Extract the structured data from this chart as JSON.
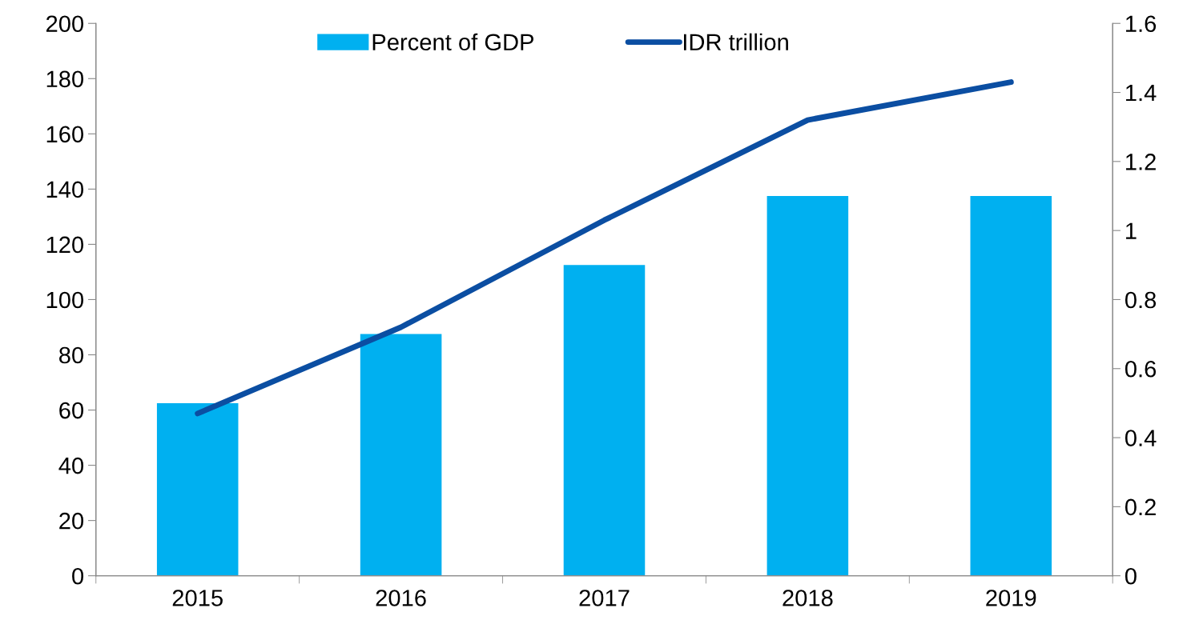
{
  "chart_data": {
    "type": "bar",
    "categories": [
      "2015",
      "2016",
      "2017",
      "2018",
      "2019"
    ],
    "series": [
      {
        "name": "Percent of GDP",
        "color": "#00b0f0",
        "values": [
          62.5,
          87.5,
          112.5,
          137.5,
          137.5
        ]
      },
      {
        "name": "IDR trillion",
        "type": "line",
        "axis": "y2",
        "color": "#0b4ea2",
        "values": [
          0.47,
          0.72,
          1.03,
          1.32,
          1.43
        ]
      }
    ],
    "ylim": [
      0,
      200
    ],
    "yticks": [
      0,
      20,
      40,
      60,
      80,
      100,
      120,
      140,
      160,
      180,
      200
    ],
    "y2lim": [
      0,
      1.6
    ],
    "y2ticks": [
      0,
      {
        "value": 0.2,
        "label": "0.2"
      },
      {
        "value": 0.4,
        "label": "0.4"
      },
      {
        "value": 0.6,
        "label": "0.6"
      },
      {
        "value": 0.8,
        "label": "0.8"
      },
      1,
      {
        "value": 1.2,
        "label": "1.2"
      },
      {
        "value": 1.4,
        "label": "1.4"
      },
      {
        "value": 1.6,
        "label": "1.6"
      }
    ],
    "grid": false,
    "legend": "top",
    "marker": "none",
    "line_style": "solid"
  }
}
